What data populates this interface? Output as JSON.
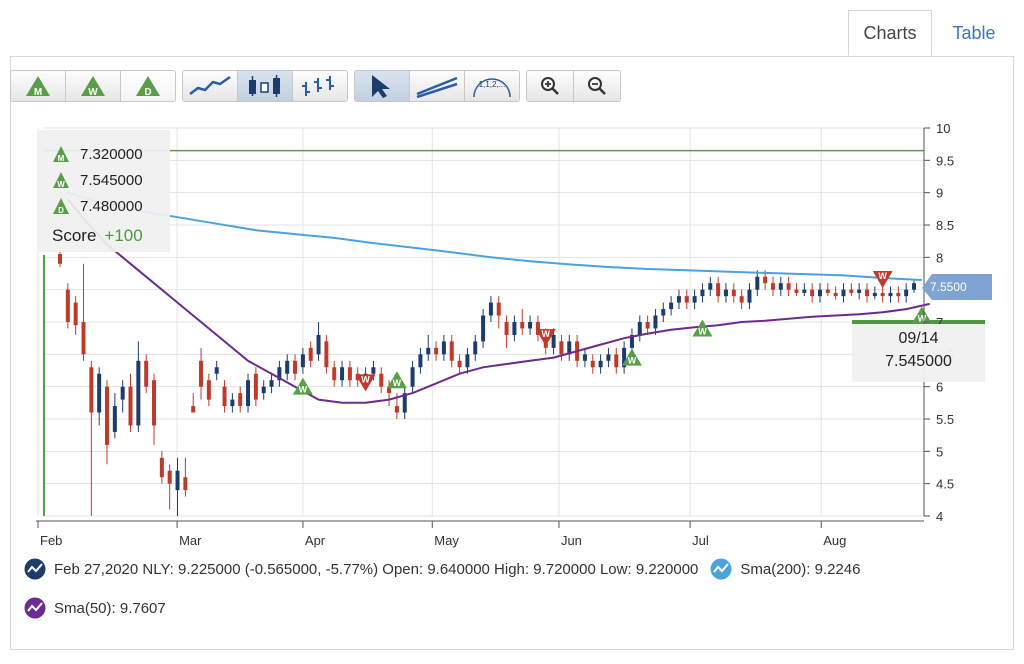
{
  "tabs": [
    {
      "label": "Charts"
    },
    {
      "label": "Table"
    }
  ],
  "toolbar": {
    "signal_buttons": [
      {
        "letter": "M",
        "icon": "monthly-signal-icon"
      },
      {
        "letter": "W",
        "icon": "weekly-signal-icon"
      },
      {
        "letter": "D",
        "icon": "daily-signal-icon"
      }
    ],
    "chart_type_buttons": [
      {
        "icon": "line-chart-icon"
      },
      {
        "icon": "candlestick-chart-icon"
      },
      {
        "icon": "ohlc-chart-icon"
      }
    ],
    "tool_buttons": [
      {
        "icon": "pointer-icon"
      },
      {
        "icon": "trendline-icon"
      },
      {
        "icon": "fibonacci-icon",
        "text": "1,1,2,..."
      }
    ],
    "zoom_buttons": [
      {
        "icon": "zoom-in-icon"
      },
      {
        "icon": "zoom-out-icon"
      }
    ]
  },
  "score_panel": {
    "rows": [
      {
        "letter": "M",
        "value": "7.320000"
      },
      {
        "letter": "W",
        "value": "7.545000"
      },
      {
        "letter": "D",
        "value": "7.480000"
      }
    ],
    "score_label": "Score",
    "score_value": "+100"
  },
  "tooltip": {
    "date": "09/14",
    "value": "7.545000"
  },
  "price_badge": "7.5500",
  "legend": {
    "ohlc": "Feb 27,2020 NLY: 9.225000 (-0.565000, -5.77%) Open: 9.640000 High: 9.720000 Low: 9.220000",
    "sma200": "Sma(200): 9.2246",
    "sma50": "Sma(50): 9.7607"
  },
  "colors": {
    "up": "#1d3c6e",
    "down": "#c0392b",
    "sma200": "#4aa3df",
    "sma50": "#6a2c8e",
    "signal": "#5a9e4a",
    "badge": "#7fa4d4"
  },
  "chart_data": {
    "type": "candlestick",
    "xlabels": [
      "Feb",
      "Mar",
      "Apr",
      "May",
      "Jun",
      "Jul",
      "Aug"
    ],
    "x_range": [
      "2020-02-01",
      "2020-09-15"
    ],
    "y_range": [
      4,
      10
    ],
    "yticks": [
      "10",
      "9.5",
      "9",
      "8.5",
      "8",
      "7.5",
      "7",
      "6.5",
      "6",
      "5.5",
      "5",
      "4.5",
      "4"
    ],
    "horizontal_lines": [
      {
        "value": 9.65,
        "color": "#5a9e4a"
      },
      {
        "value": 7.0,
        "color": "#4a9a3c"
      }
    ],
    "candles": [
      [
        8.05,
        7.9,
        8.1,
        7.85
      ],
      [
        7.5,
        7.0,
        7.6,
        6.9
      ],
      [
        7.3,
        6.95,
        7.4,
        6.8
      ],
      [
        7.0,
        6.5,
        7.9,
        6.4
      ],
      [
        6.3,
        5.6,
        6.4,
        4.0
      ],
      [
        5.6,
        6.2,
        6.3,
        5.4
      ],
      [
        6.0,
        5.1,
        6.1,
        4.8
      ],
      [
        5.3,
        5.7,
        5.9,
        5.2
      ],
      [
        5.8,
        6.0,
        6.1,
        5.6
      ],
      [
        6.0,
        5.4,
        6.2,
        5.3
      ],
      [
        5.4,
        6.4,
        6.7,
        5.3
      ],
      [
        6.4,
        6.0,
        6.5,
        5.9
      ],
      [
        6.1,
        5.4,
        6.2,
        5.1
      ],
      [
        4.9,
        4.6,
        5.0,
        4.5
      ],
      [
        4.7,
        4.5,
        4.8,
        4.1
      ],
      [
        4.4,
        4.7,
        4.9,
        4.0
      ],
      [
        4.6,
        4.4,
        4.9,
        4.3
      ],
      [
        5.7,
        5.6,
        5.9,
        5.6
      ],
      [
        6.4,
        6.0,
        6.6,
        5.8
      ],
      [
        6.1,
        5.8,
        6.2,
        5.7
      ],
      [
        6.2,
        6.3,
        6.4,
        6.1
      ],
      [
        6.0,
        5.7,
        6.1,
        5.6
      ],
      [
        5.7,
        5.8,
        5.9,
        5.6
      ],
      [
        5.9,
        5.7,
        6.0,
        5.6
      ],
      [
        5.7,
        6.1,
        6.2,
        5.6
      ],
      [
        6.2,
        5.8,
        6.3,
        5.7
      ],
      [
        5.9,
        6.0,
        6.1,
        5.8
      ],
      [
        6.0,
        6.1,
        6.2,
        5.9
      ],
      [
        6.1,
        6.3,
        6.4,
        6.0
      ],
      [
        6.2,
        6.4,
        6.5,
        6.1
      ],
      [
        6.4,
        6.2,
        6.5,
        6.1
      ],
      [
        6.3,
        6.5,
        6.6,
        6.2
      ],
      [
        6.6,
        6.4,
        6.7,
        6.3
      ],
      [
        6.5,
        6.8,
        7.0,
        6.4
      ],
      [
        6.7,
        6.3,
        6.8,
        6.2
      ],
      [
        6.3,
        6.1,
        6.4,
        6.0
      ],
      [
        6.1,
        6.3,
        6.4,
        6.0
      ],
      [
        6.3,
        6.1,
        6.4,
        6.0
      ],
      [
        6.2,
        6.1,
        6.3,
        6.0
      ],
      [
        6.1,
        6.2,
        6.3,
        6.0
      ],
      [
        6.2,
        6.3,
        6.4,
        6.1
      ],
      [
        6.2,
        6.0,
        6.3,
        5.9
      ],
      [
        6.0,
        5.9,
        6.1,
        5.7
      ],
      [
        5.7,
        5.6,
        5.9,
        5.5
      ],
      [
        5.6,
        5.9,
        6.0,
        5.5
      ],
      [
        6.0,
        6.3,
        6.4,
        5.9
      ],
      [
        6.3,
        6.5,
        6.6,
        6.2
      ],
      [
        6.5,
        6.6,
        6.8,
        6.4
      ],
      [
        6.6,
        6.5,
        6.7,
        6.4
      ],
      [
        6.5,
        6.7,
        6.8,
        6.4
      ],
      [
        6.7,
        6.4,
        6.8,
        6.3
      ],
      [
        6.4,
        6.3,
        6.5,
        6.2
      ],
      [
        6.3,
        6.5,
        6.6,
        6.2
      ],
      [
        6.5,
        6.7,
        6.8,
        6.4
      ],
      [
        6.7,
        7.1,
        7.2,
        6.6
      ],
      [
        7.1,
        7.3,
        7.4,
        7.0
      ],
      [
        7.3,
        7.1,
        7.4,
        6.9
      ],
      [
        7.0,
        6.8,
        7.1,
        6.6
      ],
      [
        6.8,
        7.0,
        7.1,
        6.7
      ],
      [
        7.0,
        6.9,
        7.2,
        6.8
      ],
      [
        6.9,
        7.0,
        7.1,
        6.8
      ],
      [
        7.0,
        6.8,
        7.1,
        6.7
      ],
      [
        6.7,
        6.6,
        6.9,
        6.5
      ],
      [
        6.6,
        6.8,
        6.9,
        6.5
      ],
      [
        6.7,
        6.5,
        6.8,
        6.4
      ],
      [
        6.5,
        6.7,
        6.8,
        6.4
      ],
      [
        6.7,
        6.4,
        6.8,
        6.3
      ],
      [
        6.4,
        6.5,
        6.6,
        6.3
      ],
      [
        6.4,
        6.3,
        6.5,
        6.2
      ],
      [
        6.3,
        6.4,
        6.5,
        6.2
      ],
      [
        6.4,
        6.5,
        6.6,
        6.3
      ],
      [
        6.5,
        6.3,
        6.6,
        6.2
      ],
      [
        6.3,
        6.6,
        6.7,
        6.2
      ],
      [
        6.6,
        6.8,
        6.9,
        6.5
      ],
      [
        6.8,
        7.0,
        7.1,
        6.7
      ],
      [
        7.0,
        6.9,
        7.1,
        6.8
      ],
      [
        6.9,
        7.1,
        7.2,
        6.8
      ],
      [
        7.1,
        7.2,
        7.3,
        7.0
      ],
      [
        7.2,
        7.3,
        7.4,
        7.1
      ],
      [
        7.3,
        7.4,
        7.5,
        7.2
      ],
      [
        7.4,
        7.3,
        7.5,
        7.2
      ],
      [
        7.3,
        7.4,
        7.5,
        7.2
      ],
      [
        7.4,
        7.5,
        7.6,
        7.3
      ],
      [
        7.5,
        7.6,
        7.7,
        7.4
      ],
      [
        7.6,
        7.4,
        7.7,
        7.3
      ],
      [
        7.4,
        7.5,
        7.6,
        7.3
      ],
      [
        7.5,
        7.4,
        7.6,
        7.3
      ],
      [
        7.4,
        7.3,
        7.5,
        7.2
      ],
      [
        7.3,
        7.5,
        7.6,
        7.2
      ],
      [
        7.5,
        7.7,
        7.8,
        7.4
      ],
      [
        7.7,
        7.6,
        7.8,
        7.5
      ],
      [
        7.6,
        7.5,
        7.7,
        7.4
      ],
      [
        7.5,
        7.6,
        7.7,
        7.4
      ],
      [
        7.6,
        7.5,
        7.7,
        7.4
      ],
      [
        7.5,
        7.45,
        7.6,
        7.4
      ],
      [
        7.45,
        7.5,
        7.6,
        7.4
      ],
      [
        7.5,
        7.4,
        7.6,
        7.3
      ],
      [
        7.4,
        7.5,
        7.6,
        7.3
      ],
      [
        7.5,
        7.45,
        7.6,
        7.4
      ],
      [
        7.45,
        7.4,
        7.55,
        7.35
      ],
      [
        7.4,
        7.5,
        7.6,
        7.3
      ],
      [
        7.5,
        7.45,
        7.6,
        7.4
      ],
      [
        7.45,
        7.5,
        7.6,
        7.35
      ],
      [
        7.5,
        7.4,
        7.6,
        7.3
      ],
      [
        7.4,
        7.45,
        7.55,
        7.35
      ],
      [
        7.45,
        7.4,
        7.55,
        7.3
      ],
      [
        7.4,
        7.45,
        7.55,
        7.3
      ],
      [
        7.45,
        7.4,
        7.55,
        7.3
      ],
      [
        7.4,
        7.5,
        7.6,
        7.3
      ],
      [
        7.5,
        7.6,
        7.65,
        7.45
      ]
    ],
    "sma200": [
      [
        1,
        9.0
      ],
      [
        5,
        8.85
      ],
      [
        10,
        8.72
      ],
      [
        15,
        8.62
      ],
      [
        20,
        8.52
      ],
      [
        25,
        8.42
      ],
      [
        30,
        8.36
      ],
      [
        35,
        8.3
      ],
      [
        40,
        8.22
      ],
      [
        45,
        8.15
      ],
      [
        50,
        8.08
      ],
      [
        55,
        8.0
      ],
      [
        60,
        7.94
      ],
      [
        65,
        7.89
      ],
      [
        70,
        7.85
      ],
      [
        75,
        7.82
      ],
      [
        80,
        7.8
      ],
      [
        85,
        7.78
      ],
      [
        90,
        7.76
      ],
      [
        95,
        7.74
      ],
      [
        100,
        7.72
      ],
      [
        105,
        7.68
      ],
      [
        110,
        7.65
      ]
    ],
    "sma50": [
      [
        1,
        8.9
      ],
      [
        3,
        8.6
      ],
      [
        6,
        8.2
      ],
      [
        9,
        7.9
      ],
      [
        12,
        7.6
      ],
      [
        15,
        7.3
      ],
      [
        18,
        7.0
      ],
      [
        21,
        6.7
      ],
      [
        24,
        6.4
      ],
      [
        27,
        6.2
      ],
      [
        30,
        6.0
      ],
      [
        33,
        5.8
      ],
      [
        36,
        5.75
      ],
      [
        39,
        5.75
      ],
      [
        42,
        5.8
      ],
      [
        45,
        5.9
      ],
      [
        48,
        6.05
      ],
      [
        51,
        6.2
      ],
      [
        54,
        6.3
      ],
      [
        57,
        6.35
      ],
      [
        60,
        6.4
      ],
      [
        63,
        6.45
      ],
      [
        66,
        6.55
      ],
      [
        69,
        6.65
      ],
      [
        72,
        6.75
      ],
      [
        75,
        6.82
      ],
      [
        78,
        6.88
      ],
      [
        81,
        6.92
      ],
      [
        84,
        6.95
      ],
      [
        87,
        7.0
      ],
      [
        90,
        7.02
      ],
      [
        93,
        7.05
      ],
      [
        96,
        7.08
      ],
      [
        99,
        7.1
      ],
      [
        102,
        7.12
      ],
      [
        105,
        7.15
      ],
      [
        108,
        7.2
      ],
      [
        111,
        7.28
      ]
    ],
    "signals": [
      {
        "letter": "W",
        "dir": "up",
        "i": 31,
        "y": 6.0
      },
      {
        "letter": "W",
        "dir": "down",
        "i": 39,
        "y": 6.05
      },
      {
        "letter": "W",
        "dir": "up",
        "i": 43,
        "y": 6.1
      },
      {
        "letter": "W",
        "dir": "down",
        "i": 62,
        "y": 6.75
      },
      {
        "letter": "W",
        "dir": "up",
        "i": 73,
        "y": 6.45
      },
      {
        "letter": "W",
        "dir": "up",
        "i": 82,
        "y": 6.9
      },
      {
        "letter": "W",
        "dir": "down",
        "i": 105,
        "y": 7.65
      },
      {
        "letter": "W",
        "dir": "up",
        "i": 110,
        "y": 7.1
      }
    ]
  }
}
